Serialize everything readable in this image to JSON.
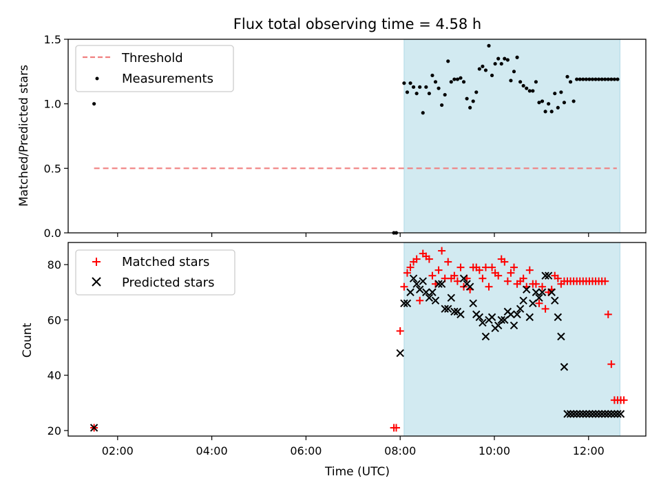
{
  "title": "Flux total observing time = 4.58 h",
  "xlabel": "Time (UTC)",
  "x_ticks": [
    "02:00",
    "04:00",
    "06:00",
    "08:00",
    "10:00",
    "12:00"
  ],
  "colors": {
    "threshold": "#f08080",
    "measurement": "#000000",
    "matched": "#ff0000",
    "predicted": "#000000",
    "span": "#add8e6"
  },
  "chart_data": [
    {
      "type": "scatter",
      "ylabel": "Matched/Predicted stars",
      "xlim": [
        "00:57",
        "13:13"
      ],
      "ylim": [
        0,
        1.5
      ],
      "y_ticks": [
        "0.0",
        "0.5",
        "1.0",
        "1.5"
      ],
      "observing_window": [
        "08:05",
        "12:40"
      ],
      "legend_placement": "top-left",
      "legend": {
        "threshold": "Threshold",
        "measurements": "Measurements"
      },
      "threshold": {
        "value": 0.5,
        "x_range": [
          "01:30",
          "12:36"
        ]
      },
      "measurements": {
        "x": [
          "01:30",
          "07:52",
          "07:55",
          "08:05",
          "08:09",
          "08:13",
          "08:17",
          "08:21",
          "08:25",
          "08:29",
          "08:33",
          "08:37",
          "08:41",
          "08:45",
          "08:49",
          "08:53",
          "08:57",
          "09:01",
          "09:05",
          "09:09",
          "09:13",
          "09:17",
          "09:21",
          "09:25",
          "09:29",
          "09:33",
          "09:37",
          "09:41",
          "09:45",
          "09:49",
          "09:53",
          "09:57",
          "10:01",
          "10:05",
          "10:09",
          "10:13",
          "10:17",
          "10:21",
          "10:25",
          "10:29",
          "10:33",
          "10:37",
          "10:41",
          "10:45",
          "10:49",
          "10:53",
          "10:57",
          "11:01",
          "11:05",
          "11:09",
          "11:13",
          "11:17",
          "11:21",
          "11:25",
          "11:29",
          "11:33",
          "11:37",
          "11:41",
          "11:45",
          "11:49",
          "11:53",
          "11:57",
          "12:01",
          "12:05",
          "12:09",
          "12:13",
          "12:17",
          "12:21",
          "12:25",
          "12:29",
          "12:33",
          "12:37"
        ],
        "y": [
          1.0,
          0.0,
          0.0,
          1.16,
          1.09,
          1.16,
          1.13,
          1.08,
          1.13,
          0.93,
          1.13,
          1.08,
          1.22,
          1.17,
          1.12,
          0.99,
          1.07,
          1.33,
          1.17,
          1.19,
          1.19,
          1.2,
          1.17,
          1.04,
          0.97,
          1.02,
          1.09,
          1.27,
          1.29,
          1.26,
          1.45,
          1.22,
          1.31,
          1.35,
          1.31,
          1.35,
          1.34,
          1.18,
          1.25,
          1.36,
          1.17,
          1.14,
          1.12,
          1.1,
          1.1,
          1.17,
          1.01,
          1.02,
          0.94,
          1.0,
          0.94,
          1.08,
          0.97,
          1.09,
          1.01,
          1.21,
          1.17,
          1.02,
          1.19,
          1.19,
          1.19,
          1.19,
          1.19,
          1.19,
          1.19,
          1.19,
          1.19,
          1.19,
          1.19,
          1.19,
          1.19,
          1.19
        ]
      }
    },
    {
      "type": "scatter",
      "ylabel": "Count",
      "xlim": [
        "00:57",
        "13:13"
      ],
      "ylim": [
        18,
        88
      ],
      "y_ticks": [
        "20",
        "40",
        "60",
        "80"
      ],
      "observing_window": [
        "08:05",
        "12:40"
      ],
      "legend_placement": "top-left",
      "series": [
        {
          "name": "Matched stars",
          "marker": "plus",
          "x": [
            "01:30",
            "07:52",
            "07:55",
            "08:00",
            "08:05",
            "08:09",
            "08:13",
            "08:17",
            "08:21",
            "08:25",
            "08:29",
            "08:33",
            "08:37",
            "08:41",
            "08:45",
            "08:49",
            "08:53",
            "08:57",
            "09:01",
            "09:05",
            "09:09",
            "09:13",
            "09:17",
            "09:21",
            "09:25",
            "09:29",
            "09:33",
            "09:37",
            "09:41",
            "09:45",
            "09:49",
            "09:53",
            "09:57",
            "10:01",
            "10:05",
            "10:09",
            "10:13",
            "10:17",
            "10:21",
            "10:25",
            "10:29",
            "10:33",
            "10:37",
            "10:41",
            "10:45",
            "10:49",
            "10:53",
            "10:57",
            "11:01",
            "11:05",
            "11:09",
            "11:13",
            "11:17",
            "11:21",
            "11:25",
            "11:29",
            "11:33",
            "11:37",
            "11:41",
            "11:45",
            "11:49",
            "11:53",
            "11:57",
            "12:01",
            "12:05",
            "12:09",
            "12:13",
            "12:17",
            "12:21",
            "12:25",
            "12:29",
            "12:33",
            "12:37",
            "12:41",
            "12:45"
          ],
          "y": [
            21,
            21,
            21,
            56,
            72,
            77,
            79,
            81,
            82,
            67,
            84,
            83,
            82,
            76,
            73,
            78,
            85,
            75,
            81,
            75,
            76,
            74,
            79,
            72,
            75,
            71,
            79,
            79,
            78,
            75,
            79,
            72,
            79,
            77,
            76,
            82,
            81,
            74,
            77,
            79,
            73,
            74,
            75,
            72,
            78,
            73,
            73,
            66,
            72,
            64,
            70,
            71,
            76,
            75,
            73,
            74,
            74,
            74,
            74,
            74,
            74,
            74,
            74,
            74,
            74,
            74,
            74,
            74,
            74,
            62,
            44,
            31,
            31,
            31,
            31
          ]
        },
        {
          "name": "Predicted stars",
          "marker": "x",
          "x": [
            "01:30",
            "08:00",
            "08:05",
            "08:09",
            "08:13",
            "08:17",
            "08:21",
            "08:25",
            "08:29",
            "08:33",
            "08:37",
            "08:41",
            "08:45",
            "08:49",
            "08:53",
            "08:57",
            "09:01",
            "09:05",
            "09:09",
            "09:13",
            "09:17",
            "09:21",
            "09:25",
            "09:29",
            "09:33",
            "09:37",
            "09:41",
            "09:45",
            "09:49",
            "09:53",
            "09:57",
            "10:01",
            "10:05",
            "10:09",
            "10:13",
            "10:17",
            "10:21",
            "10:25",
            "10:29",
            "10:33",
            "10:37",
            "10:41",
            "10:45",
            "10:49",
            "10:53",
            "10:57",
            "11:01",
            "11:05",
            "11:09",
            "11:13",
            "11:17",
            "11:21",
            "11:25",
            "11:29",
            "11:33",
            "11:37",
            "11:41",
            "11:45",
            "11:49",
            "11:53",
            "11:57",
            "12:01",
            "12:05",
            "12:09",
            "12:13",
            "12:17",
            "12:21",
            "12:25",
            "12:29",
            "12:33",
            "12:37",
            "12:41"
          ],
          "y": [
            21,
            48,
            66,
            66,
            70,
            75,
            73,
            71,
            74,
            70,
            68,
            70,
            67,
            73,
            73,
            64,
            64,
            68,
            63,
            63,
            62,
            75,
            73,
            72,
            66,
            62,
            61,
            59,
            54,
            60,
            61,
            57,
            58,
            60,
            60,
            63,
            62,
            58,
            62,
            64,
            67,
            71,
            61,
            66,
            70,
            68,
            70,
            76,
            76,
            70,
            67,
            61,
            54,
            43,
            26,
            26,
            26,
            26,
            26,
            26,
            26,
            26,
            26,
            26,
            26,
            26,
            26,
            26,
            26,
            26,
            26,
            26
          ]
        }
      ]
    }
  ]
}
